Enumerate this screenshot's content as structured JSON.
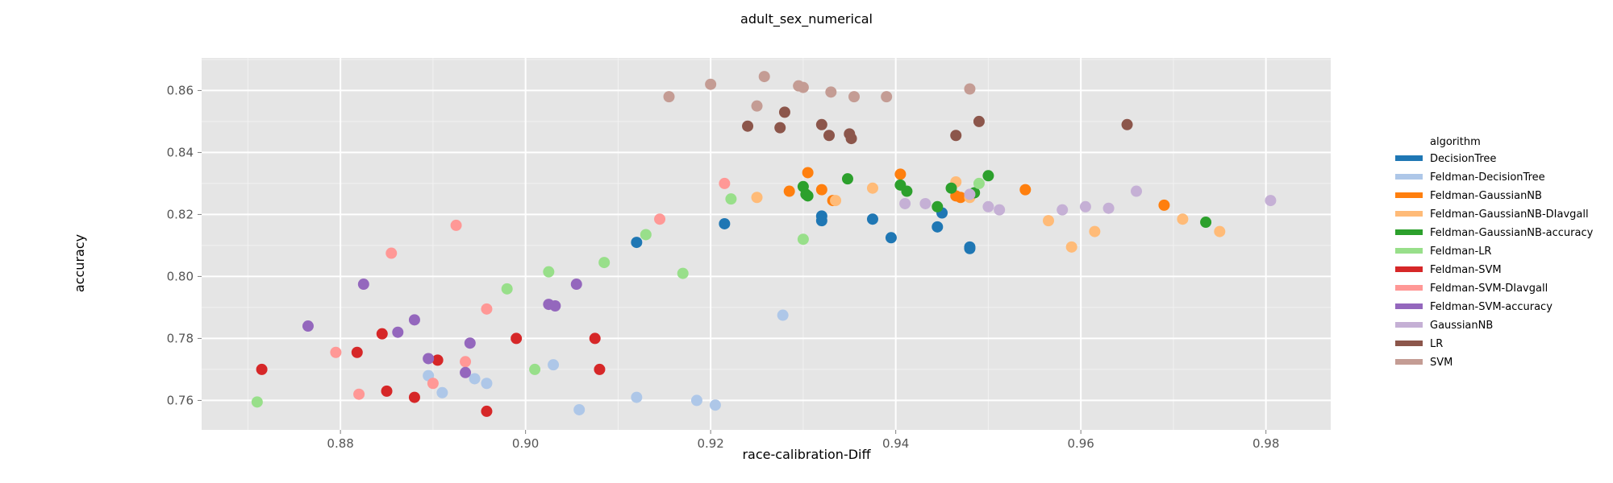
{
  "chart_data": {
    "type": "scatter",
    "title": "adult_sex_numerical",
    "xlabel": "race-calibration-Diff",
    "ylabel": "accuracy",
    "xlim": [
      0.865,
      0.987
    ],
    "ylim": [
      0.7505,
      0.8705
    ],
    "xticks": [
      0.88,
      0.9,
      0.92,
      0.94,
      0.96,
      0.98
    ],
    "xtick_labels": [
      "0.88",
      "0.90",
      "0.92",
      "0.94",
      "0.96",
      "0.98"
    ],
    "yticks": [
      0.76,
      0.78,
      0.8,
      0.82,
      0.84,
      0.86
    ],
    "ytick_labels": [
      "0.76",
      "0.78",
      "0.80",
      "0.82",
      "0.84",
      "0.86"
    ],
    "grid": true,
    "legend_title": "algorithm",
    "legend_position": "right",
    "series": [
      {
        "name": "DecisionTree",
        "color": "#1f77b4",
        "points": [
          [
            0.912,
            0.811
          ],
          [
            0.9215,
            0.817
          ],
          [
            0.932,
            0.818
          ],
          [
            0.932,
            0.8195
          ],
          [
            0.9375,
            0.8185
          ],
          [
            0.9395,
            0.8125
          ],
          [
            0.9445,
            0.816
          ],
          [
            0.945,
            0.8205
          ],
          [
            0.948,
            0.809
          ],
          [
            0.948,
            0.8095
          ]
        ]
      },
      {
        "name": "Feldman-DecisionTree",
        "color": "#aec7e8",
        "points": [
          [
            0.8895,
            0.768
          ],
          [
            0.891,
            0.7625
          ],
          [
            0.8945,
            0.767
          ],
          [
            0.8958,
            0.7655
          ],
          [
            0.903,
            0.7715
          ],
          [
            0.9058,
            0.757
          ],
          [
            0.912,
            0.761
          ],
          [
            0.9185,
            0.76
          ],
          [
            0.9205,
            0.7585
          ],
          [
            0.9278,
            0.7875
          ]
        ]
      },
      {
        "name": "Feldman-GaussianNB",
        "color": "#ff7f0e",
        "points": [
          [
            0.9285,
            0.8275
          ],
          [
            0.9305,
            0.8335
          ],
          [
            0.932,
            0.828
          ],
          [
            0.9332,
            0.8245
          ],
          [
            0.9405,
            0.833
          ],
          [
            0.9465,
            0.826
          ],
          [
            0.947,
            0.8255
          ],
          [
            0.954,
            0.828
          ],
          [
            0.969,
            0.823
          ]
        ]
      },
      {
        "name": "Feldman-GaussianNB-DIavgall",
        "color": "#ffbb78",
        "points": [
          [
            0.925,
            0.8255
          ],
          [
            0.9335,
            0.8245
          ],
          [
            0.9375,
            0.8285
          ],
          [
            0.9465,
            0.8305
          ],
          [
            0.948,
            0.8255
          ],
          [
            0.9565,
            0.818
          ],
          [
            0.959,
            0.8095
          ],
          [
            0.9615,
            0.8145
          ],
          [
            0.971,
            0.8185
          ],
          [
            0.975,
            0.8145
          ]
        ]
      },
      {
        "name": "Feldman-GaussianNB-accuracy",
        "color": "#2ca02c",
        "points": [
          [
            0.93,
            0.829
          ],
          [
            0.9303,
            0.8265
          ],
          [
            0.9305,
            0.826
          ],
          [
            0.9348,
            0.8315
          ],
          [
            0.9405,
            0.8295
          ],
          [
            0.9412,
            0.8275
          ],
          [
            0.9445,
            0.8225
          ],
          [
            0.946,
            0.8285
          ],
          [
            0.9485,
            0.827
          ],
          [
            0.95,
            0.8325
          ],
          [
            0.9735,
            0.8175
          ]
        ]
      },
      {
        "name": "Feldman-LR",
        "color": "#98df8a",
        "points": [
          [
            0.871,
            0.7595
          ],
          [
            0.898,
            0.796
          ],
          [
            0.901,
            0.77
          ],
          [
            0.9025,
            0.8015
          ],
          [
            0.9085,
            0.8045
          ],
          [
            0.913,
            0.8135
          ],
          [
            0.917,
            0.801
          ],
          [
            0.9222,
            0.825
          ],
          [
            0.93,
            0.812
          ],
          [
            0.949,
            0.83
          ]
        ]
      },
      {
        "name": "Feldman-SVM",
        "color": "#d62728",
        "points": [
          [
            0.8715,
            0.77
          ],
          [
            0.8818,
            0.7755
          ],
          [
            0.8845,
            0.7815
          ],
          [
            0.885,
            0.763
          ],
          [
            0.888,
            0.761
          ],
          [
            0.8905,
            0.773
          ],
          [
            0.8958,
            0.7565
          ],
          [
            0.899,
            0.78
          ],
          [
            0.9075,
            0.78
          ],
          [
            0.908,
            0.77
          ]
        ]
      },
      {
        "name": "Feldman-SVM-DIavgall",
        "color": "#ff9896",
        "points": [
          [
            0.8795,
            0.7755
          ],
          [
            0.882,
            0.762
          ],
          [
            0.8855,
            0.8075
          ],
          [
            0.89,
            0.7655
          ],
          [
            0.8935,
            0.7725
          ],
          [
            0.8925,
            0.8165
          ],
          [
            0.8958,
            0.7895
          ],
          [
            0.9145,
            0.8185
          ],
          [
            0.9215,
            0.83
          ]
        ]
      },
      {
        "name": "Feldman-SVM-accuracy",
        "color": "#9467bd",
        "points": [
          [
            0.8765,
            0.784
          ],
          [
            0.8825,
            0.7975
          ],
          [
            0.8862,
            0.782
          ],
          [
            0.888,
            0.786
          ],
          [
            0.8895,
            0.7735
          ],
          [
            0.8935,
            0.769
          ],
          [
            0.894,
            0.7785
          ],
          [
            0.9025,
            0.791
          ],
          [
            0.9032,
            0.7905
          ],
          [
            0.9055,
            0.7975
          ]
        ]
      },
      {
        "name": "GaussianNB",
        "color": "#c5b0d5",
        "points": [
          [
            0.941,
            0.8235
          ],
          [
            0.9432,
            0.8235
          ],
          [
            0.948,
            0.8265
          ],
          [
            0.95,
            0.8225
          ],
          [
            0.9512,
            0.8215
          ],
          [
            0.958,
            0.8215
          ],
          [
            0.9605,
            0.8225
          ],
          [
            0.963,
            0.822
          ],
          [
            0.966,
            0.8275
          ],
          [
            0.9805,
            0.8245
          ]
        ]
      },
      {
        "name": "LR",
        "color": "#8c564b",
        "points": [
          [
            0.924,
            0.8485
          ],
          [
            0.9275,
            0.848
          ],
          [
            0.928,
            0.853
          ],
          [
            0.932,
            0.849
          ],
          [
            0.9328,
            0.8455
          ],
          [
            0.935,
            0.846
          ],
          [
            0.9352,
            0.8445
          ],
          [
            0.9465,
            0.8455
          ],
          [
            0.949,
            0.85
          ],
          [
            0.965,
            0.849
          ]
        ]
      },
      {
        "name": "SVM",
        "color": "#c49c94",
        "points": [
          [
            0.9155,
            0.858
          ],
          [
            0.92,
            0.862
          ],
          [
            0.925,
            0.855
          ],
          [
            0.9258,
            0.8645
          ],
          [
            0.9295,
            0.8615
          ],
          [
            0.93,
            0.861
          ],
          [
            0.933,
            0.8595
          ],
          [
            0.9355,
            0.858
          ],
          [
            0.939,
            0.858
          ],
          [
            0.948,
            0.8605
          ]
        ]
      }
    ]
  }
}
